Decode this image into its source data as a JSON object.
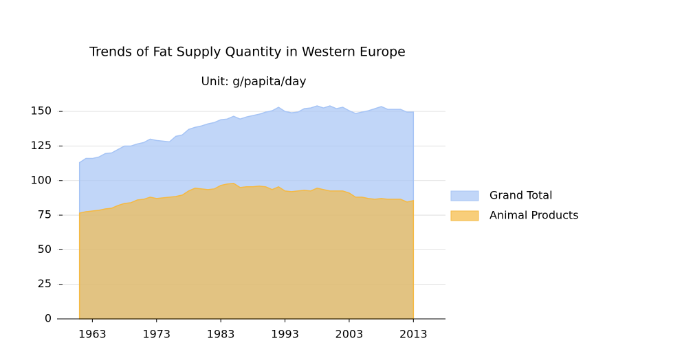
{
  "chart_data": {
    "type": "area",
    "title": "Trends of Fat Supply Quantity in Western Europe",
    "subtitle": "Unit: g/papita/day",
    "x": [
      1961,
      1962,
      1963,
      1964,
      1965,
      1966,
      1967,
      1968,
      1969,
      1970,
      1971,
      1972,
      1973,
      1974,
      1975,
      1976,
      1977,
      1978,
      1979,
      1980,
      1981,
      1982,
      1983,
      1984,
      1985,
      1986,
      1987,
      1988,
      1989,
      1990,
      1991,
      1992,
      1993,
      1994,
      1995,
      1996,
      1997,
      1998,
      1999,
      2000,
      2001,
      2002,
      2003,
      2004,
      2005,
      2006,
      2007,
      2008,
      2009,
      2010,
      2011,
      2012,
      2013
    ],
    "series": [
      {
        "name": "Grand Total",
        "color": "#a6c4f5",
        "values": [
          113,
          116,
          116,
          117,
          119.5,
          120,
          122.5,
          125,
          125,
          126.5,
          127.5,
          130,
          129,
          128.5,
          128,
          132,
          133,
          137,
          138.5,
          139.5,
          141,
          142,
          144,
          144.5,
          146.5,
          144.5,
          146,
          147,
          148,
          149.5,
          150.5,
          153,
          150,
          149,
          149.5,
          152,
          152.5,
          154,
          152.5,
          154,
          152,
          153,
          150.5,
          148.5,
          149.5,
          150.5,
          152,
          153.5,
          151.5,
          151.5,
          151.5,
          149.5,
          149.5
        ]
      },
      {
        "name": "Animal Products",
        "color": "#f5b942",
        "values": [
          76.5,
          77.5,
          78,
          78.5,
          79.5,
          80,
          82,
          83.5,
          84,
          86,
          86.5,
          88,
          87,
          87.5,
          88,
          88.5,
          89.5,
          92.5,
          94.5,
          94,
          93.5,
          94,
          96.5,
          97.5,
          98,
          95,
          95.5,
          95.5,
          96,
          95.5,
          93.5,
          95.5,
          92.5,
          92,
          92.5,
          93,
          92.5,
          94.5,
          93.5,
          92.5,
          92.5,
          92.5,
          91,
          88,
          88,
          87,
          86.5,
          87,
          86.5,
          86.5,
          86.5,
          84.5,
          85.5
        ]
      }
    ],
    "xlim": [
      1957.5,
      2018
    ],
    "xticks": [
      1963,
      1973,
      1983,
      1993,
      2003,
      2013
    ],
    "ylim": [
      0,
      160
    ],
    "yticks": [
      0,
      25,
      50,
      75,
      100,
      125,
      150
    ],
    "grid": true,
    "legend": "right"
  }
}
